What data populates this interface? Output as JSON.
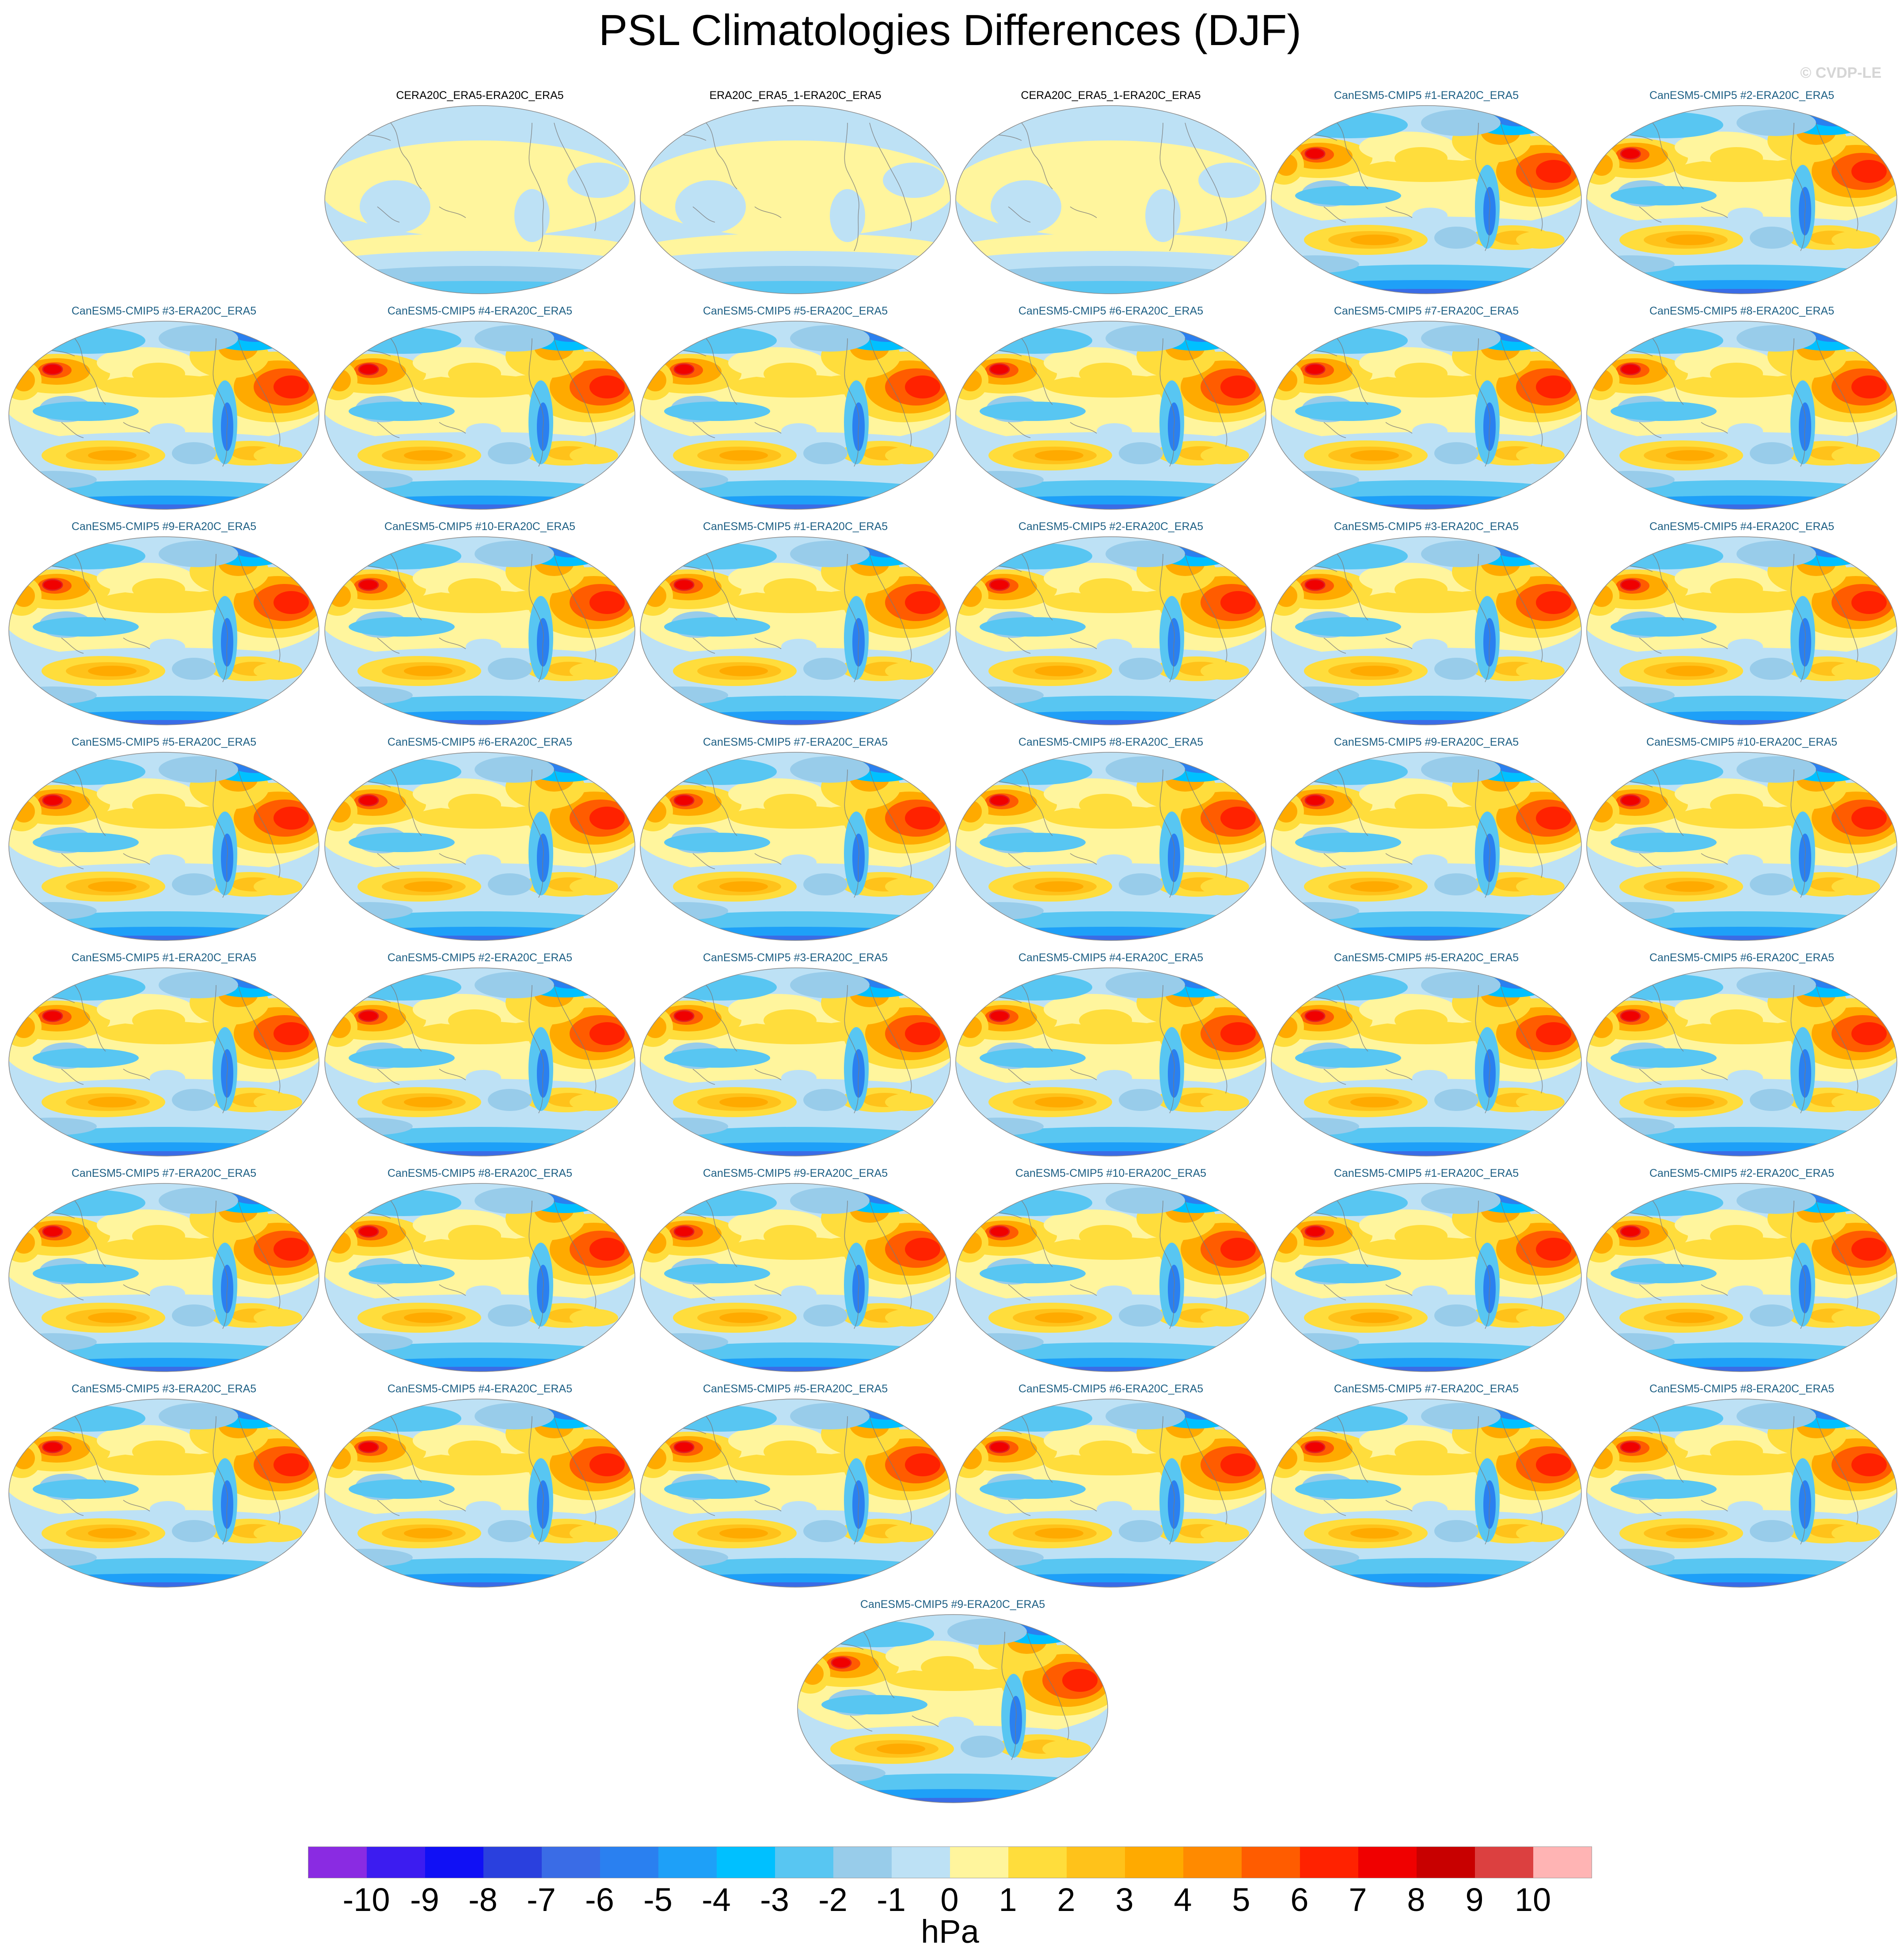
{
  "title": "PSL Climatologies Differences (DJF)",
  "watermark": "© CVDP-LE",
  "panels": [
    {
      "label": "CERA20C_ERA5-ERA20C_ERA5",
      "kind": "obs"
    },
    {
      "label": "ERA20C_ERA5_1-ERA20C_ERA5",
      "kind": "obs"
    },
    {
      "label": "CERA20C_ERA5_1-ERA20C_ERA5",
      "kind": "obs"
    },
    {
      "label": "CanESM5-CMIP5 #1-ERA20C_ERA5",
      "kind": "model"
    },
    {
      "label": "CanESM5-CMIP5 #2-ERA20C_ERA5",
      "kind": "model"
    },
    {
      "label": "CanESM5-CMIP5 #3-ERA20C_ERA5",
      "kind": "model"
    },
    {
      "label": "CanESM5-CMIP5 #4-ERA20C_ERA5",
      "kind": "model"
    },
    {
      "label": "CanESM5-CMIP5 #5-ERA20C_ERA5",
      "kind": "model"
    },
    {
      "label": "CanESM5-CMIP5 #6-ERA20C_ERA5",
      "kind": "model"
    },
    {
      "label": "CanESM5-CMIP5 #7-ERA20C_ERA5",
      "kind": "model"
    },
    {
      "label": "CanESM5-CMIP5 #8-ERA20C_ERA5",
      "kind": "model"
    },
    {
      "label": "CanESM5-CMIP5 #9-ERA20C_ERA5",
      "kind": "model"
    },
    {
      "label": "CanESM5-CMIP5 #10-ERA20C_ERA5",
      "kind": "model"
    },
    {
      "label": "CanESM5-CMIP5 #1-ERA20C_ERA5",
      "kind": "model"
    },
    {
      "label": "CanESM5-CMIP5 #2-ERA20C_ERA5",
      "kind": "model"
    },
    {
      "label": "CanESM5-CMIP5 #3-ERA20C_ERA5",
      "kind": "model"
    },
    {
      "label": "CanESM5-CMIP5 #4-ERA20C_ERA5",
      "kind": "model"
    },
    {
      "label": "CanESM5-CMIP5 #5-ERA20C_ERA5",
      "kind": "model"
    },
    {
      "label": "CanESM5-CMIP5 #6-ERA20C_ERA5",
      "kind": "model"
    },
    {
      "label": "CanESM5-CMIP5 #7-ERA20C_ERA5",
      "kind": "model"
    },
    {
      "label": "CanESM5-CMIP5 #8-ERA20C_ERA5",
      "kind": "model"
    },
    {
      "label": "CanESM5-CMIP5 #9-ERA20C_ERA5",
      "kind": "model"
    },
    {
      "label": "CanESM5-CMIP5 #10-ERA20C_ERA5",
      "kind": "model"
    },
    {
      "label": "CanESM5-CMIP5 #1-ERA20C_ERA5",
      "kind": "model"
    },
    {
      "label": "CanESM5-CMIP5 #2-ERA20C_ERA5",
      "kind": "model"
    },
    {
      "label": "CanESM5-CMIP5 #3-ERA20C_ERA5",
      "kind": "model"
    },
    {
      "label": "CanESM5-CMIP5 #4-ERA20C_ERA5",
      "kind": "model"
    },
    {
      "label": "CanESM5-CMIP5 #5-ERA20C_ERA5",
      "kind": "model"
    },
    {
      "label": "CanESM5-CMIP5 #6-ERA20C_ERA5",
      "kind": "model"
    },
    {
      "label": "CanESM5-CMIP5 #7-ERA20C_ERA5",
      "kind": "model"
    },
    {
      "label": "CanESM5-CMIP5 #8-ERA20C_ERA5",
      "kind": "model"
    },
    {
      "label": "CanESM5-CMIP5 #9-ERA20C_ERA5",
      "kind": "model"
    },
    {
      "label": "CanESM5-CMIP5 #10-ERA20C_ERA5",
      "kind": "model"
    },
    {
      "label": "CanESM5-CMIP5 #1-ERA20C_ERA5",
      "kind": "model"
    },
    {
      "label": "CanESM5-CMIP5 #2-ERA20C_ERA5",
      "kind": "model"
    },
    {
      "label": "CanESM5-CMIP5 #3-ERA20C_ERA5",
      "kind": "model"
    },
    {
      "label": "CanESM5-CMIP5 #4-ERA20C_ERA5",
      "kind": "model"
    },
    {
      "label": "CanESM5-CMIP5 #5-ERA20C_ERA5",
      "kind": "model"
    },
    {
      "label": "CanESM5-CMIP5 #6-ERA20C_ERA5",
      "kind": "model"
    },
    {
      "label": "CanESM5-CMIP5 #7-ERA20C_ERA5",
      "kind": "model"
    },
    {
      "label": "CanESM5-CMIP5 #8-ERA20C_ERA5",
      "kind": "model"
    },
    {
      "label": "CanESM5-CMIP5 #9-ERA20C_ERA5",
      "kind": "model"
    }
  ],
  "colorbar": {
    "labels": [
      "-10",
      "-9",
      "-8",
      "-7",
      "-6",
      "-5",
      "-4",
      "-3",
      "-2",
      "-1",
      "0",
      "1",
      "2",
      "3",
      "4",
      "5",
      "6",
      "7",
      "8",
      "9",
      "10"
    ],
    "colors": [
      "#8a2be2",
      "#3c1cf0",
      "#1010f5",
      "#2a40de",
      "#3a6ce6",
      "#2a80f0",
      "#1ea0f8",
      "#00c0ff",
      "#58c6f2",
      "#98ccea",
      "#bde1f5",
      "#fff59d",
      "#ffdd3c",
      "#ffc21a",
      "#ffaa00",
      "#ff8a00",
      "#ff5c00",
      "#ff2200",
      "#f00000",
      "#c80000",
      "#dc4040",
      "#ffb4b4"
    ],
    "units": "hPa"
  }
}
